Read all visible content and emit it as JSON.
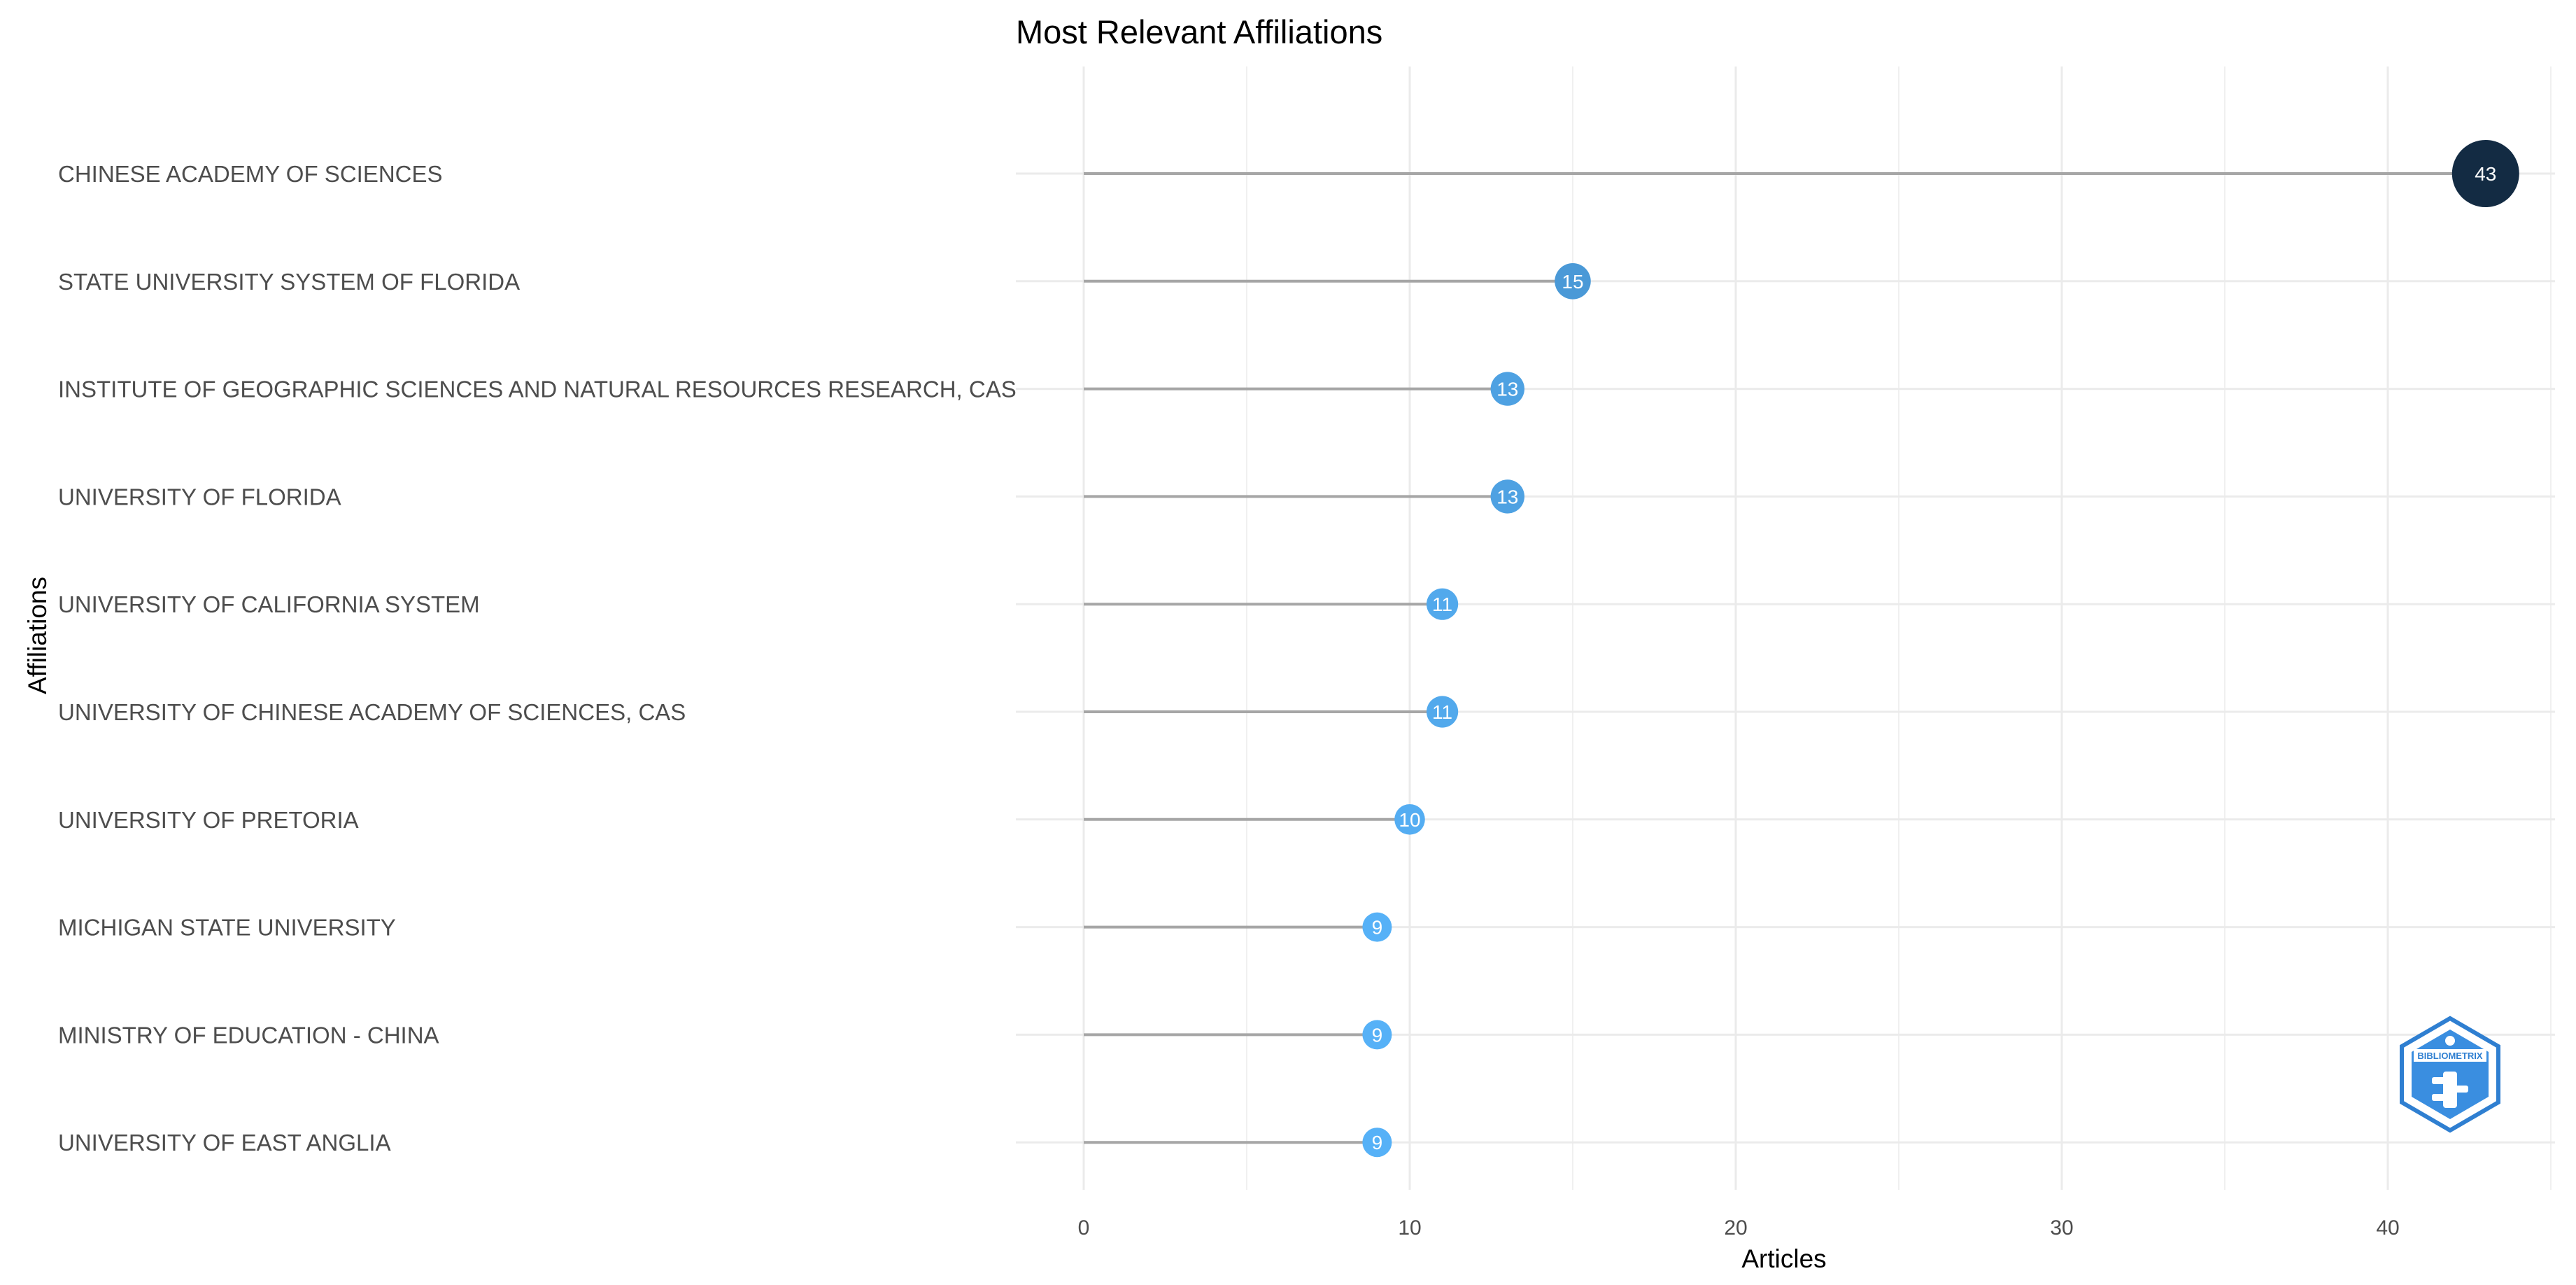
{
  "chart_data": {
    "type": "lollipop",
    "title": "Most Relevant Affiliations",
    "xlabel": "Articles",
    "ylabel": "Affiliations",
    "xlim": [
      0,
      45
    ],
    "xticks": [
      0,
      10,
      20,
      30,
      40
    ],
    "grid": true,
    "categories": [
      "CHINESE ACADEMY OF SCIENCES",
      "STATE UNIVERSITY SYSTEM OF FLORIDA",
      "INSTITUTE OF GEOGRAPHIC SCIENCES AND NATURAL RESOURCES RESEARCH, CAS",
      "UNIVERSITY OF FLORIDA",
      "UNIVERSITY OF CALIFORNIA SYSTEM",
      "UNIVERSITY OF CHINESE ACADEMY OF SCIENCES, CAS",
      "UNIVERSITY OF PRETORIA",
      "MICHIGAN STATE UNIVERSITY",
      "MINISTRY OF EDUCATION - CHINA",
      "UNIVERSITY OF EAST ANGLIA"
    ],
    "values": [
      43,
      15,
      13,
      13,
      11,
      11,
      10,
      9,
      9,
      9
    ],
    "colors": {
      "low": "#56b1f7",
      "high": "#132b43",
      "stem": "#a6a6a6",
      "grid": "#ebebeb"
    }
  },
  "logo": {
    "name": "bibliometrix-logo-icon",
    "text": "BIBLIOMETRIX"
  }
}
